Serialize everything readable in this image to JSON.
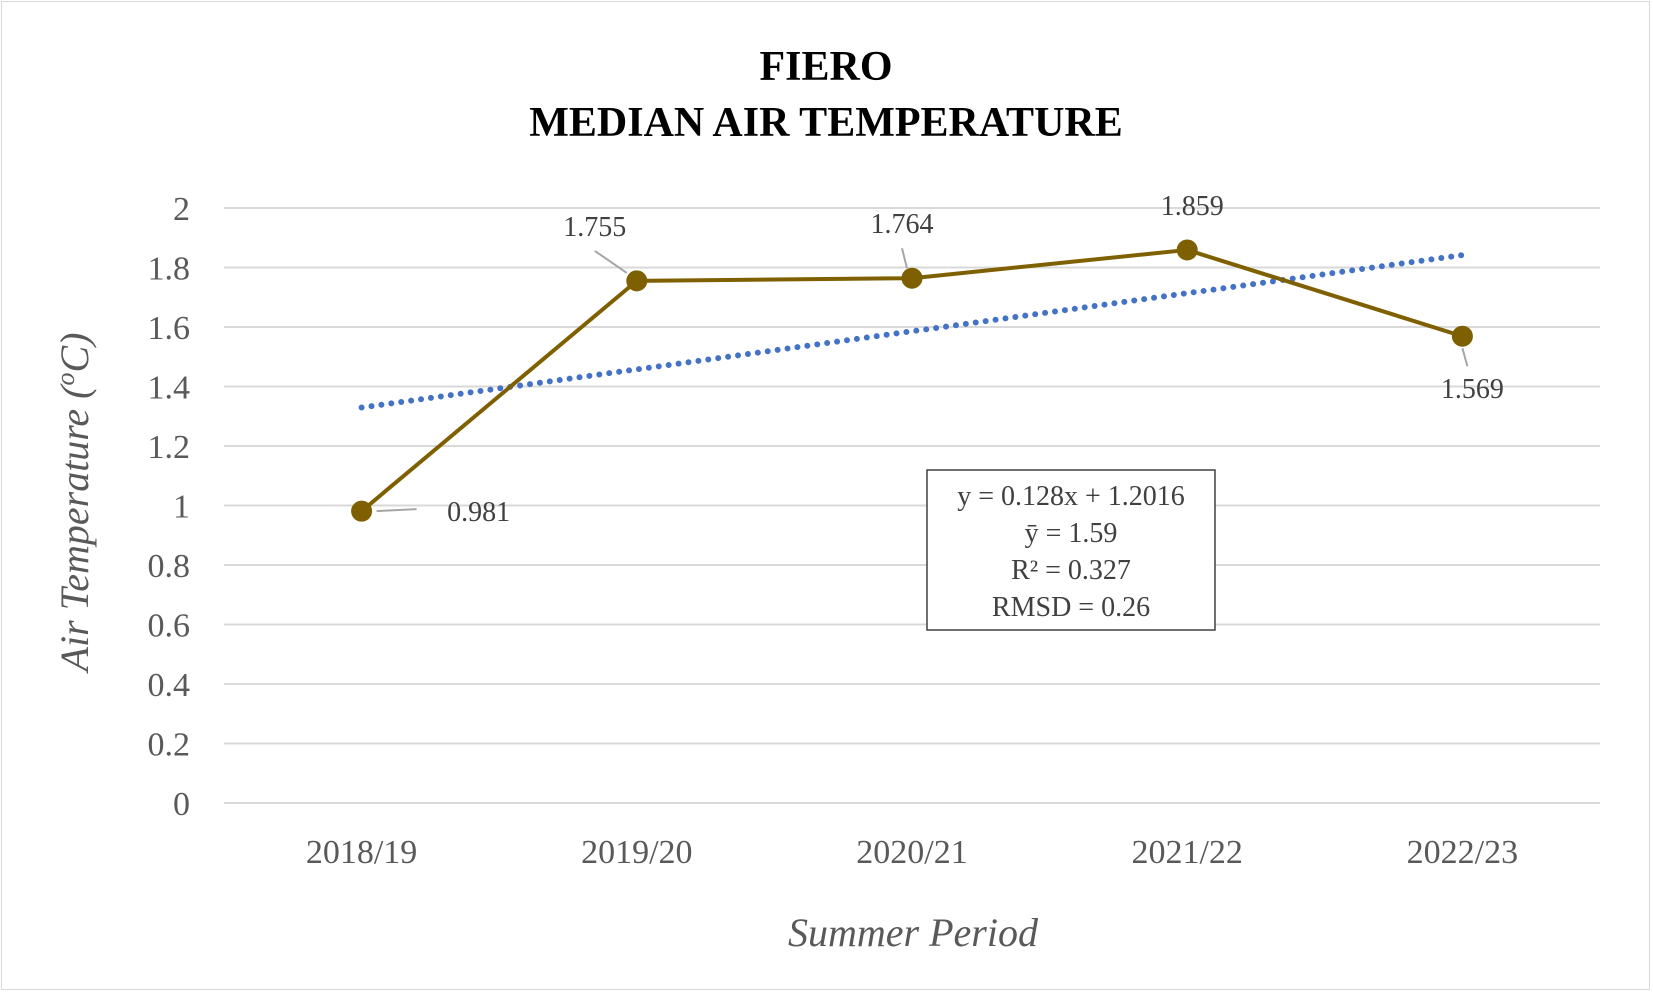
{
  "chart_data": {
    "type": "line",
    "title": [
      "FIERO",
      "MEDIAN AIR TEMPERATURE"
    ],
    "xlabel": "Summer Period",
    "ylabel": "Air Temperature (oC)",
    "ylabel_parts": {
      "main": "Air Temperature (",
      "sup": "o",
      "unit": "C)"
    },
    "categories": [
      "2018/19",
      "2019/20",
      "2020/21",
      "2021/22",
      "2022/23"
    ],
    "ylim": [
      0,
      2
    ],
    "yticks": [
      "0",
      "0.2",
      "0.4",
      "0.6",
      "0.8",
      "1",
      "1.2",
      "1.4",
      "1.6",
      "1.8",
      "2"
    ],
    "grid": true,
    "series": [
      {
        "values": [
          0.981,
          1.755,
          1.764,
          1.859,
          1.569
        ],
        "labels": [
          "0.981",
          "1.755",
          "1.764",
          "1.859",
          "1.569"
        ],
        "color": "#7f6000"
      }
    ],
    "trendline": {
      "type": "linear",
      "slope": 0.128,
      "intercept": 1.2016,
      "color": "#4472c4",
      "style": "dotted"
    },
    "stats_box": [
      "y = 0.128x + 1.2016",
      "ȳ = 1.59",
      "R² = 0.327",
      "RMSD = 0.26"
    ]
  }
}
